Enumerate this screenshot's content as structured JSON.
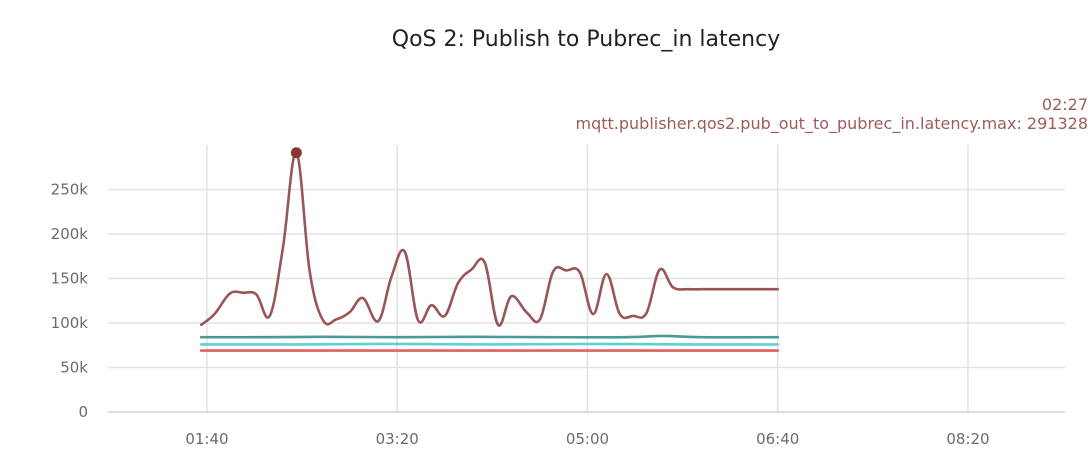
{
  "chart_data": {
    "type": "line",
    "title": "QoS 2: Publish to Pubrec_in latency",
    "xlabel": "",
    "ylabel": "",
    "ylim": [
      0,
      300000
    ],
    "grid": true,
    "x_ticks": [
      "01:40",
      "03:20",
      "05:00",
      "06:40",
      "08:20"
    ],
    "y_ticks": [
      "0",
      "50k",
      "100k",
      "150k",
      "200k",
      "250k"
    ],
    "y_tick_values": [
      0,
      50000,
      100000,
      150000,
      200000,
      250000
    ],
    "x_range_minutes": [
      48,
      551
    ],
    "x_tick_minutes": [
      100,
      200,
      300,
      400,
      500
    ],
    "hover": {
      "time": "02:27",
      "series": "mqtt.publisher.qos2.pub_out_to_pubrec_in.latency.max",
      "value": "291328",
      "point": {
        "x_minutes": 147,
        "y": 291328
      }
    },
    "series": [
      {
        "key": "max",
        "color": "#9a5656",
        "x_minutes": [
          97,
          104,
          112,
          119,
          126,
          133,
          140,
          147,
          154,
          161,
          168,
          175,
          182,
          190,
          197,
          204,
          211,
          218,
          225,
          232,
          239,
          246,
          253,
          260,
          268,
          275,
          282,
          289,
          296,
          303,
          310,
          317,
          324,
          331,
          338,
          345,
          353,
          360,
          367,
          374,
          381,
          388,
          395,
          400
        ],
        "values": [
          98000,
          110000,
          133000,
          134000,
          132000,
          108000,
          185000,
          291328,
          158000,
          103000,
          104000,
          112000,
          128000,
          102000,
          152000,
          180000,
          103000,
          120000,
          108000,
          145000,
          160000,
          168000,
          98000,
          130000,
          112000,
          104000,
          158000,
          159000,
          157000,
          110000,
          155000,
          110000,
          108000,
          111000,
          160000,
          140000,
          138000,
          138000,
          138000,
          138000,
          138000,
          138000,
          138000,
          138000
        ]
      },
      {
        "key": "p99",
        "color": "#4a9a96",
        "x_minutes": [
          97,
          130,
          160,
          200,
          240,
          280,
          320,
          340,
          360,
          400
        ],
        "values": [
          84000,
          84000,
          84500,
          84000,
          84500,
          84000,
          84000,
          85500,
          84000,
          84000
        ]
      },
      {
        "key": "p95",
        "color": "#5fd0d4",
        "x_minutes": [
          97,
          150,
          200,
          250,
          300,
          350,
          400
        ],
        "values": [
          76000,
          76000,
          76500,
          76000,
          76500,
          76000,
          76000
        ]
      },
      {
        "key": "median",
        "color": "#e06060",
        "x_minutes": [
          97,
          150,
          200,
          250,
          300,
          350,
          400
        ],
        "values": [
          69000,
          69000,
          69000,
          69000,
          69000,
          69000,
          69000
        ]
      }
    ]
  }
}
